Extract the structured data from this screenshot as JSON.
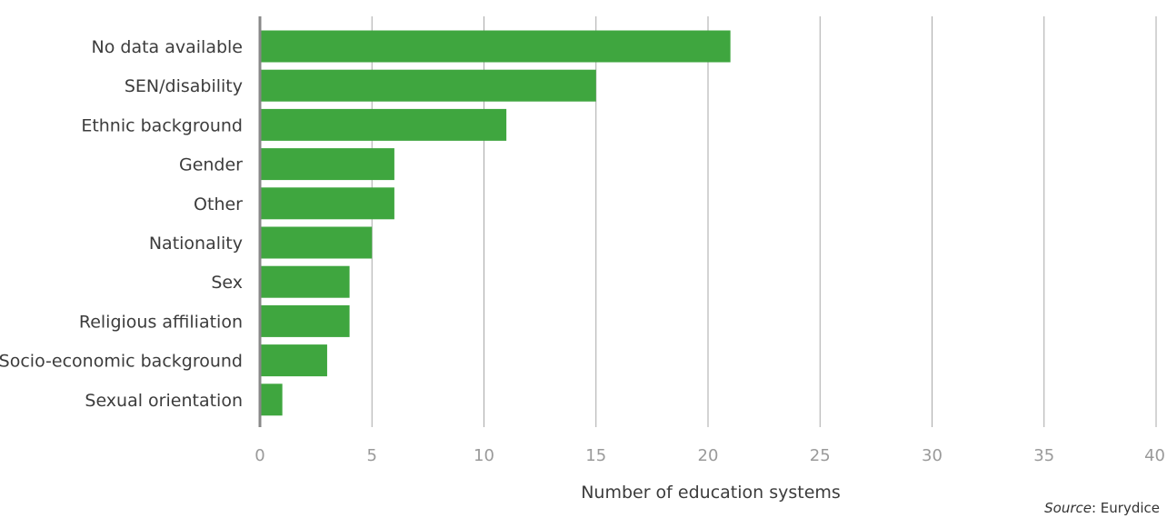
{
  "chart_data": {
    "type": "bar",
    "orientation": "horizontal",
    "categories": [
      "No data available",
      "SEN/disability",
      "Ethnic background",
      "Gender",
      "Other",
      "Nationality",
      "Sex",
      "Religious affiliation",
      "Socio-economic background",
      "Sexual orientation"
    ],
    "values": [
      21,
      15,
      11,
      6,
      6,
      5,
      4,
      4,
      3,
      1
    ],
    "xlabel": "Number of education systems",
    "ylabel": "",
    "xlim": [
      0,
      40
    ],
    "xticks": [
      0,
      5,
      10,
      15,
      20,
      25,
      30,
      35,
      40
    ],
    "grid": true,
    "bar_color": "#3fa63f"
  },
  "source": {
    "label": "Source",
    "text": ": Eurydice"
  }
}
